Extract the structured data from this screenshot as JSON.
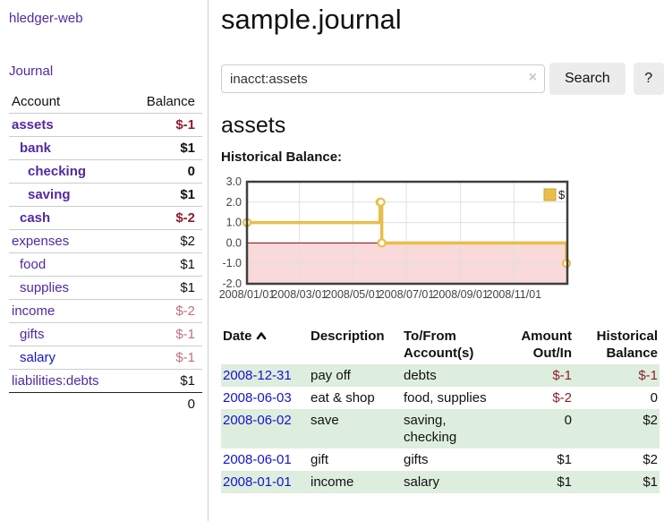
{
  "colors": {
    "link_purple": "#5229A3",
    "link_blue": "#1414CC",
    "negative_strong": "#8F1E2C",
    "negative_soft": "#C4707C",
    "row_green": "#DEEEDE",
    "chart_gold": "#E9BE4A",
    "chart_negative_region": "#F9D9D9",
    "chart_zero_line": "#8B0000"
  },
  "sidebar": {
    "brand": "hledger-web",
    "nav_journal": "Journal",
    "accounts": {
      "headers": {
        "account": "Account",
        "balance": "Balance"
      },
      "rows": [
        {
          "name": "assets",
          "depth": 1,
          "bold": true,
          "balance": "$-1"
        },
        {
          "name": "bank",
          "depth": 2,
          "bold": true,
          "balance": "$1"
        },
        {
          "name": "checking",
          "depth": 3,
          "bold": true,
          "balance": "0"
        },
        {
          "name": "saving",
          "depth": 3,
          "bold": true,
          "balance": "$1"
        },
        {
          "name": "cash",
          "depth": 2,
          "bold": true,
          "balance": "$-2"
        },
        {
          "name": "expenses",
          "depth": 1,
          "bold": false,
          "balance": "$2"
        },
        {
          "name": "food",
          "depth": 2,
          "bold": false,
          "balance": "$1"
        },
        {
          "name": "supplies",
          "depth": 2,
          "bold": false,
          "balance": "$1"
        },
        {
          "name": "income",
          "depth": 1,
          "bold": false,
          "balance": "$-2"
        },
        {
          "name": "gifts",
          "depth": 2,
          "bold": false,
          "balance": "$-1"
        },
        {
          "name": "salary",
          "depth": 2,
          "bold": false,
          "blue": true,
          "balance": "$-1"
        },
        {
          "name": "liabilities:debts",
          "depth": 1,
          "bold": false,
          "balance": "$1"
        }
      ],
      "total": "0"
    }
  },
  "main": {
    "title": "sample.journal",
    "search": {
      "value": "inacct:assets",
      "clear_icon": "×",
      "search_button": "Search",
      "help_button": "?"
    },
    "account_heading": "assets",
    "chart_title": "Historical Balance:"
  },
  "chart_data": {
    "type": "line",
    "mode": "steps",
    "title": "Historical Balance",
    "series": [
      {
        "name": "$",
        "points": [
          [
            "2008-01-01",
            1
          ],
          [
            "2008-06-01",
            2
          ],
          [
            "2008-06-02",
            2
          ],
          [
            "2008-06-03",
            0
          ],
          [
            "2008-12-31",
            -1
          ]
        ]
      }
    ],
    "x_range": [
      "2008-01-01",
      "2009-01-01"
    ],
    "x_ticks": [
      "2008/01/01",
      "2008/03/01",
      "2008/05/01",
      "2008/07/01",
      "2008/09/01",
      "2008/11/01"
    ],
    "y_ticks": [
      3.0,
      2.0,
      1.0,
      0.0,
      -1.0,
      -2.0
    ],
    "ylim": [
      -2,
      3
    ],
    "grid": true,
    "legend": {
      "label": "$",
      "position": "top-right"
    },
    "negative_region_highlight": true
  },
  "register": {
    "headers": {
      "date": "Date",
      "description": "Description",
      "account": "To/From\nAccount(s)",
      "amount": "Amount\nOut/In",
      "balance": "Historical\nBalance"
    },
    "rows": [
      {
        "date": "2008-12-31",
        "description": "pay off",
        "accounts": "debts",
        "amount": "$-1",
        "balance": "$-1"
      },
      {
        "date": "2008-06-03",
        "description": "eat & shop",
        "accounts": "food, supplies",
        "amount": "$-2",
        "balance": "0"
      },
      {
        "date": "2008-06-02",
        "description": "save",
        "accounts": "saving, checking",
        "amount": "0",
        "balance": "$2"
      },
      {
        "date": "2008-06-01",
        "description": "gift",
        "accounts": "gifts",
        "amount": "$1",
        "balance": "$2"
      },
      {
        "date": "2008-01-01",
        "description": "income",
        "accounts": "salary",
        "amount": "$1",
        "balance": "$1"
      }
    ]
  }
}
